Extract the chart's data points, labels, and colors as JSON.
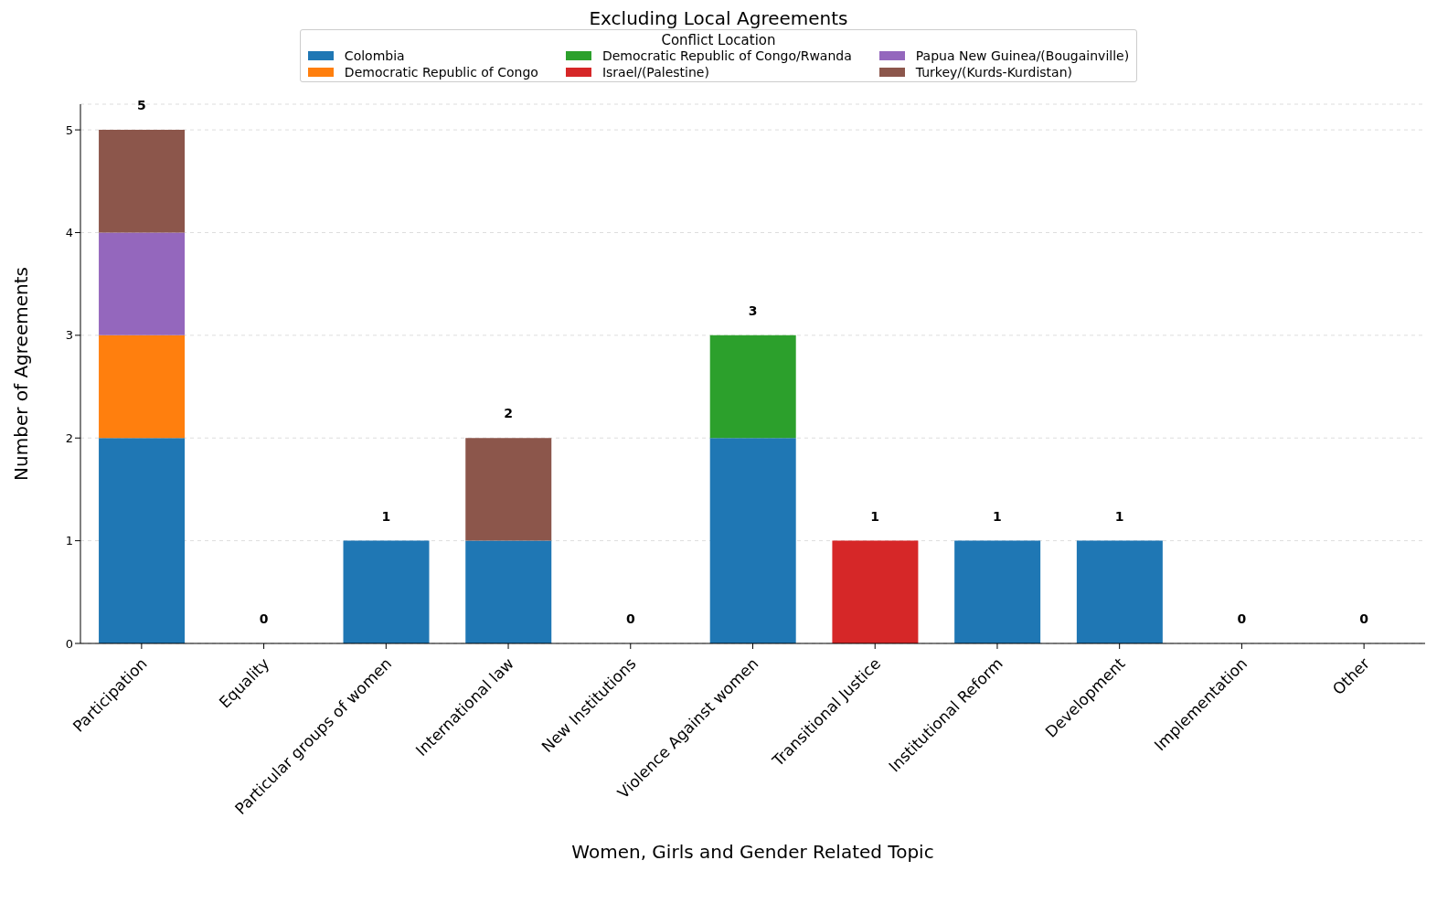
{
  "chart_data": {
    "type": "bar",
    "title": "Excluding Local Agreements",
    "xlabel": "Women, Girls and Gender Related Topic",
    "ylabel": "Number of Agreements",
    "legend_title": "Conflict Location",
    "categories": [
      "Participation",
      "Equality",
      "Particular groups of women",
      "International law",
      "New Institutions",
      "Violence Against women",
      "Transitional Justice",
      "Institutional Reform",
      "Development",
      "Implementation",
      "Other"
    ],
    "series": [
      {
        "name": "Colombia",
        "color": "#1f77b4",
        "values": [
          2,
          0,
          1,
          1,
          0,
          2,
          0,
          1,
          1,
          0,
          0
        ]
      },
      {
        "name": "Democratic Republic of Congo",
        "color": "#ff7f0e",
        "values": [
          1,
          0,
          0,
          0,
          0,
          0,
          0,
          0,
          0,
          0,
          0
        ]
      },
      {
        "name": "Democratic Republic of Congo/Rwanda",
        "color": "#2ca02c",
        "values": [
          0,
          0,
          0,
          0,
          0,
          1,
          0,
          0,
          0,
          0,
          0
        ]
      },
      {
        "name": "Israel/(Palestine)",
        "color": "#d62728",
        "values": [
          0,
          0,
          0,
          0,
          0,
          0,
          1,
          0,
          0,
          0,
          0
        ]
      },
      {
        "name": "Papua New Guinea/(Bougainville)",
        "color": "#9467bd",
        "values": [
          1,
          0,
          0,
          0,
          0,
          0,
          0,
          0,
          0,
          0,
          0
        ]
      },
      {
        "name": "Turkey/(Kurds-Kurdistan)",
        "color": "#8c564b",
        "values": [
          1,
          0,
          0,
          1,
          0,
          0,
          0,
          0,
          0,
          0,
          0
        ]
      }
    ],
    "stacked": true,
    "totals": [
      "5",
      "0",
      "1",
      "2",
      "0",
      "3",
      "1",
      "1",
      "1",
      "0",
      "0"
    ],
    "ylim": [
      0,
      5.25
    ],
    "yticks": [
      0,
      1,
      2,
      3,
      4,
      5
    ],
    "grid": "y",
    "legend": "top"
  }
}
